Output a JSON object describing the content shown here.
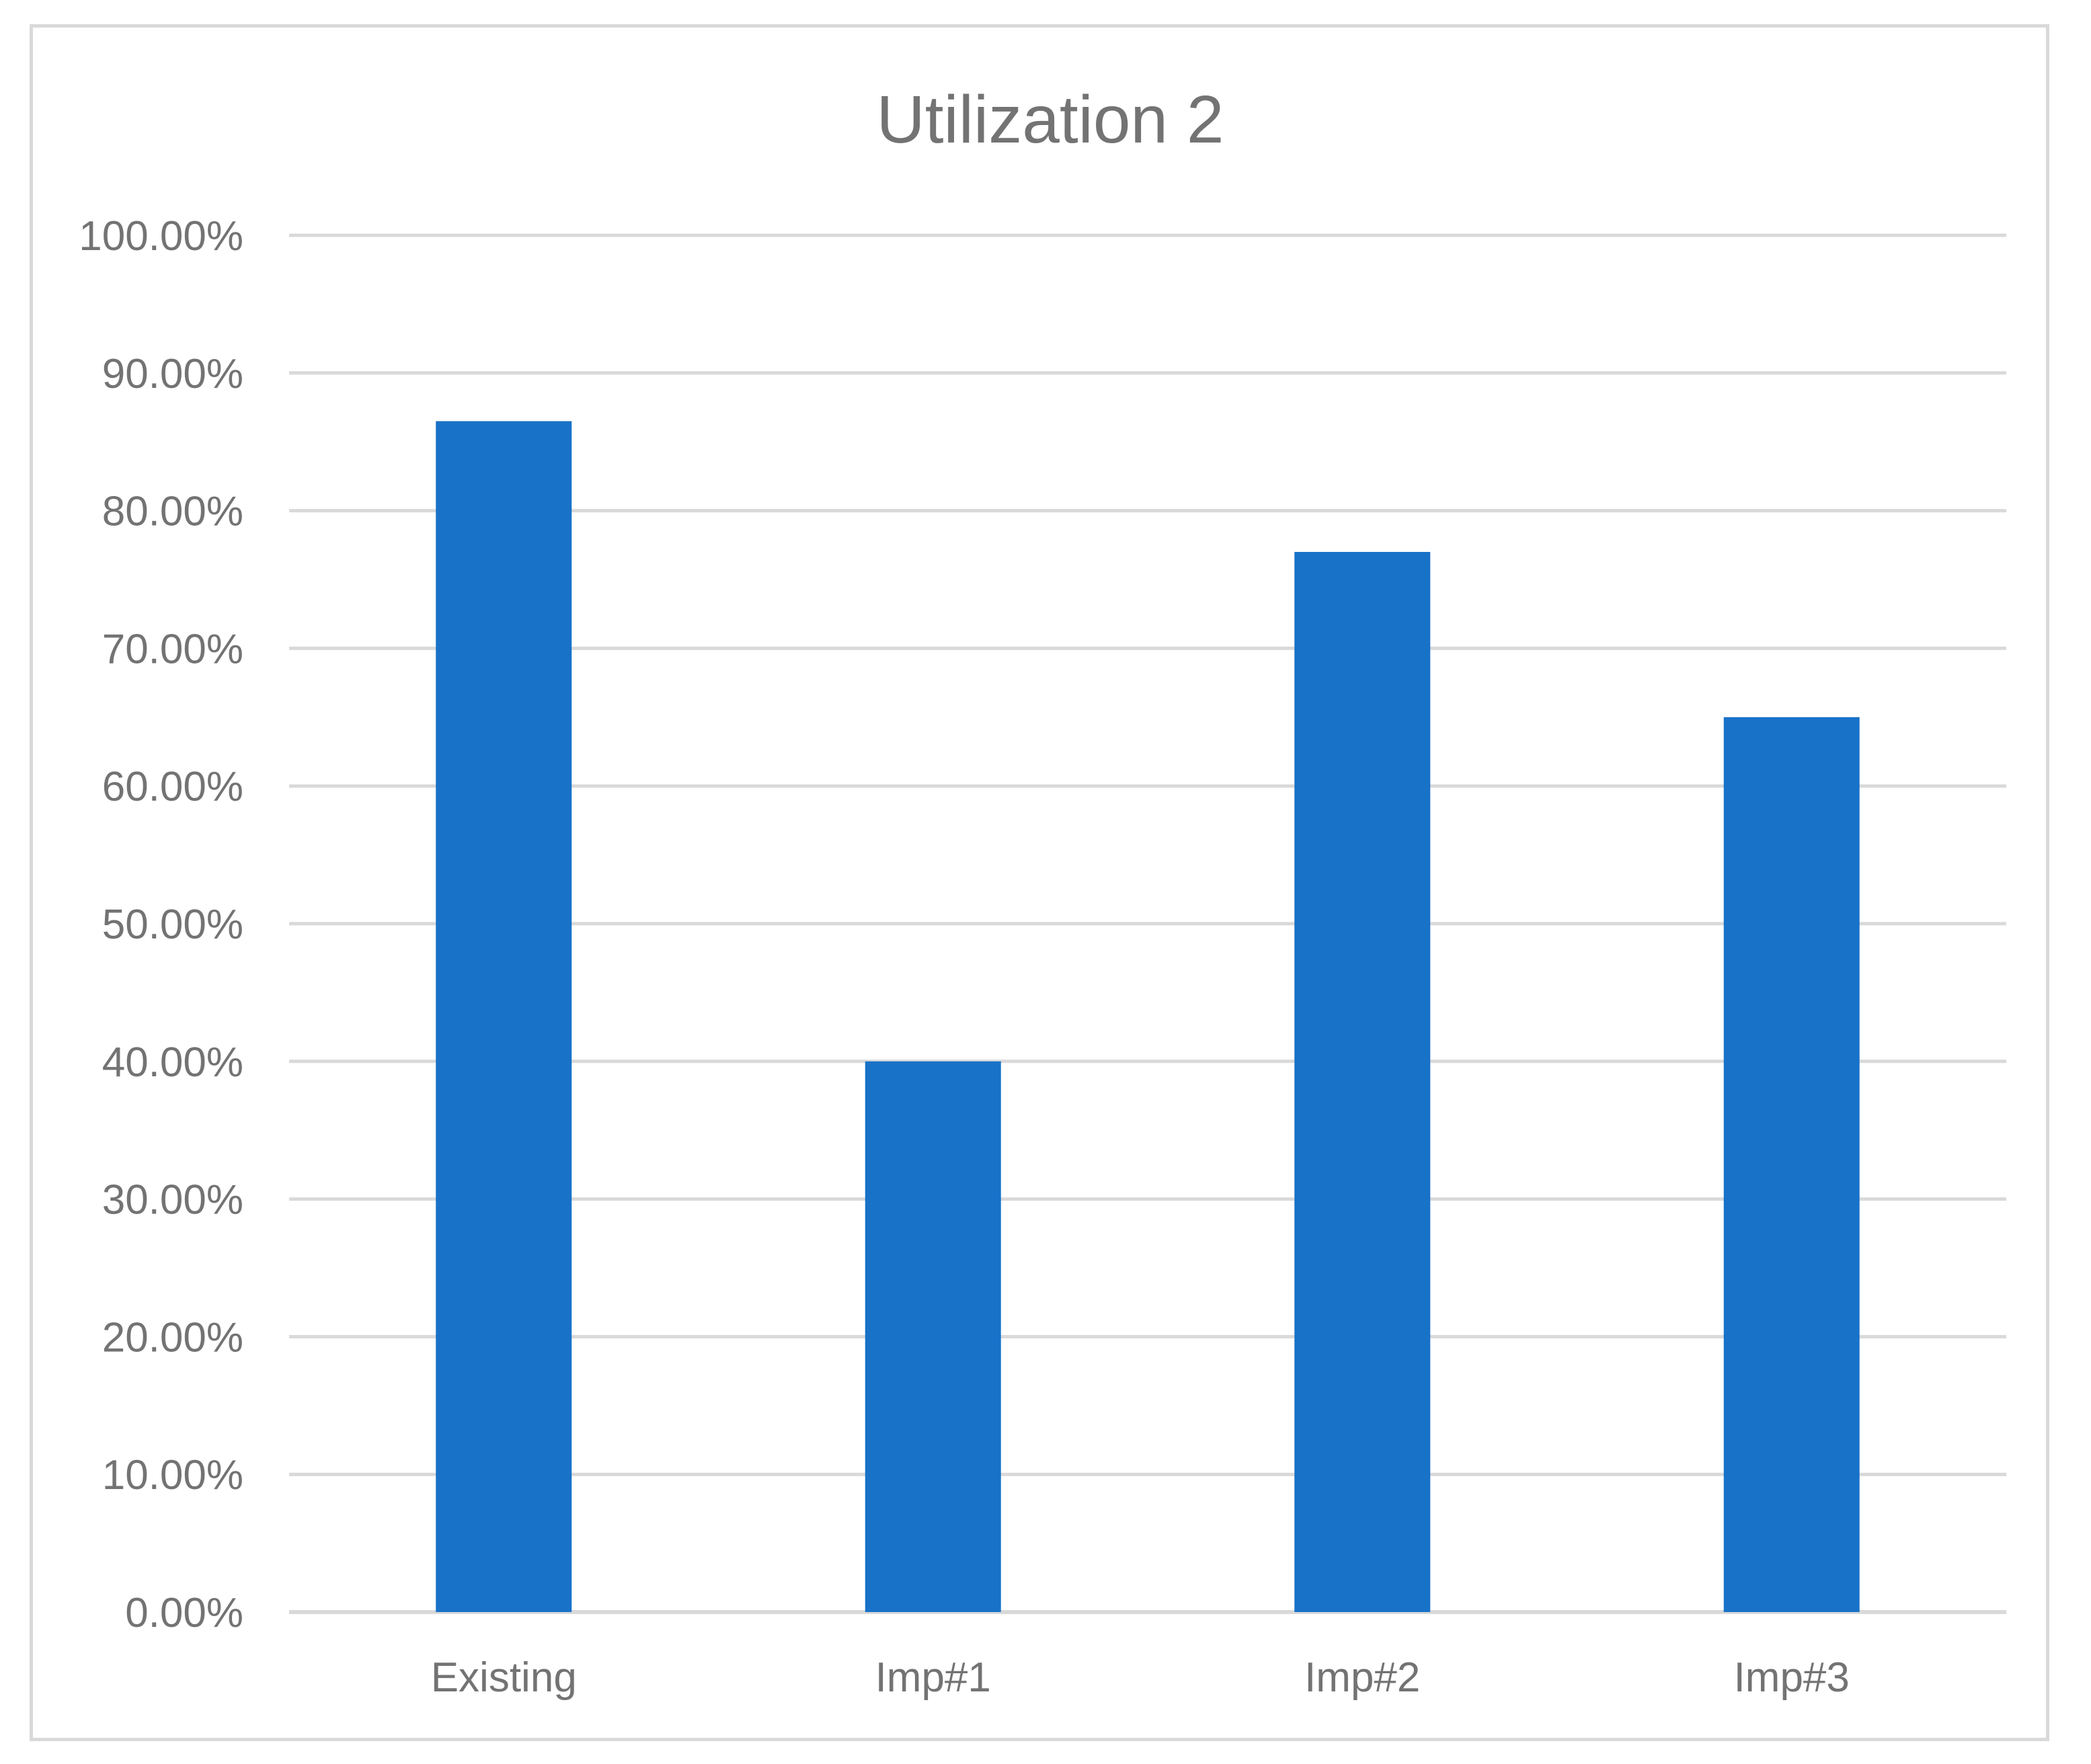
{
  "chart_data": {
    "type": "bar",
    "title": "Utilization 2",
    "categories": [
      "Existing",
      "Imp#1",
      "Imp#2",
      "Imp#3"
    ],
    "series": [
      {
        "values": [
          0.865,
          0.4,
          0.77,
          0.65
        ],
        "color": "#1872C8"
      }
    ],
    "ylim": [
      0,
      1
    ],
    "yticks": [
      0,
      0.1,
      0.2,
      0.3,
      0.4,
      0.5,
      0.6,
      0.7,
      0.8,
      0.9,
      1.0
    ],
    "ytick_labels": [
      "0.00%",
      "10.00%",
      "20.00%",
      "30.00%",
      "40.00%",
      "50.00%",
      "60.00%",
      "70.00%",
      "80.00%",
      "90.00%",
      "100.00%"
    ],
    "xlabel": "",
    "ylabel": "",
    "grid": true,
    "gridline_color": "#d9d9d9",
    "legend": "none"
  }
}
